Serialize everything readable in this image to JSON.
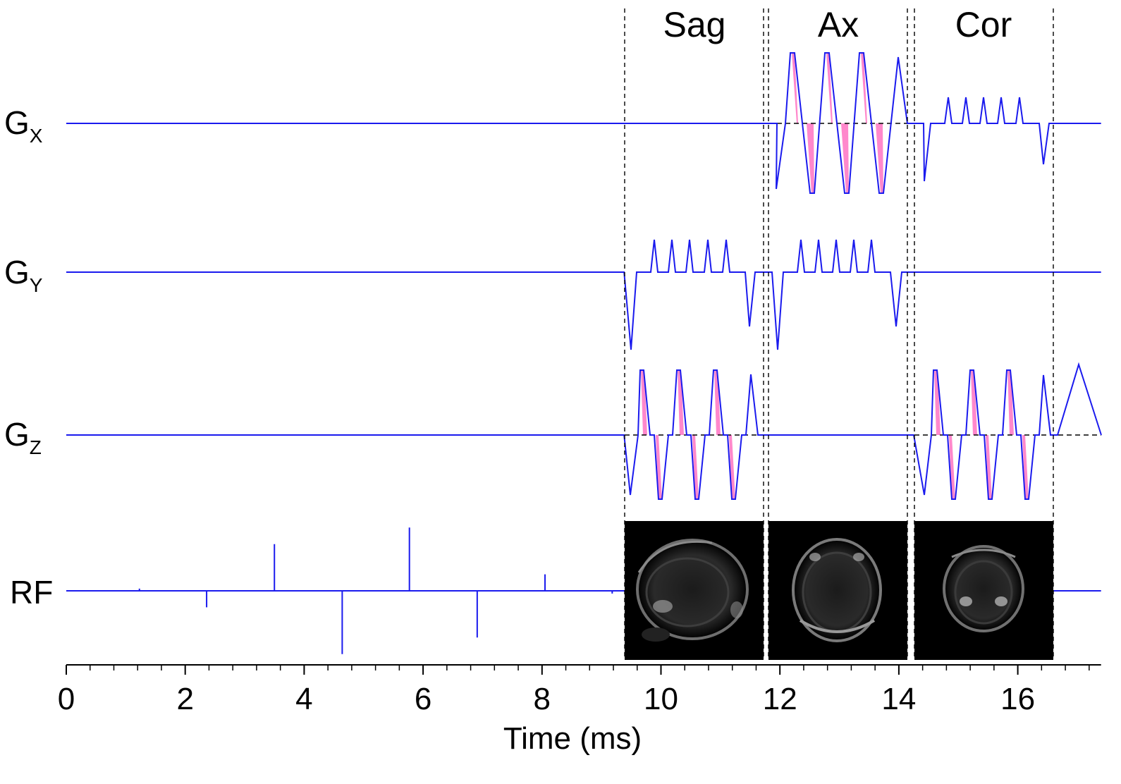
{
  "sections": [
    "Sag",
    "Ax",
    "Cor"
  ],
  "channels": {
    "gx": {
      "main": "G",
      "sub": "X"
    },
    "gy": {
      "main": "G",
      "sub": "Y"
    },
    "gz": {
      "main": "G",
      "sub": "Z"
    },
    "rf": {
      "main": "RF",
      "sub": ""
    }
  },
  "x_axis": {
    "label": "Time (ms)",
    "range": [
      0,
      17.4
    ],
    "major_ticks": [
      0,
      2,
      4,
      6,
      8,
      10,
      12,
      14,
      16
    ],
    "tick_labels": [
      "0",
      "2",
      "4",
      "6",
      "8",
      "10",
      "12",
      "14",
      "16"
    ],
    "minor_step": 0.4
  },
  "colors": {
    "waveform": "#1a1aee",
    "fill": "#ff88cc",
    "axis": "#000000",
    "image_bg": "#000000"
  },
  "rf_pulses": [
    {
      "t": 1.23,
      "amp": 0.08
    },
    {
      "t": 2.36,
      "amp": -0.6
    },
    {
      "t": 3.5,
      "amp": 1.7
    },
    {
      "t": 4.64,
      "amp": -2.3
    },
    {
      "t": 5.77,
      "amp": 2.3
    },
    {
      "t": 6.91,
      "amp": -1.7
    },
    {
      "t": 8.05,
      "amp": 0.6
    },
    {
      "t": 9.18,
      "amp": -0.1
    }
  ],
  "section_boundaries_ms": [
    9.38,
    11.7,
    11.8,
    14.14,
    14.25,
    16.6
  ],
  "images": [
    {
      "section": "Sag",
      "icon": "sagittal-brain-image"
    },
    {
      "section": "Ax",
      "icon": "axial-brain-image"
    },
    {
      "section": "Cor",
      "icon": "coronal-brain-image"
    }
  ]
}
